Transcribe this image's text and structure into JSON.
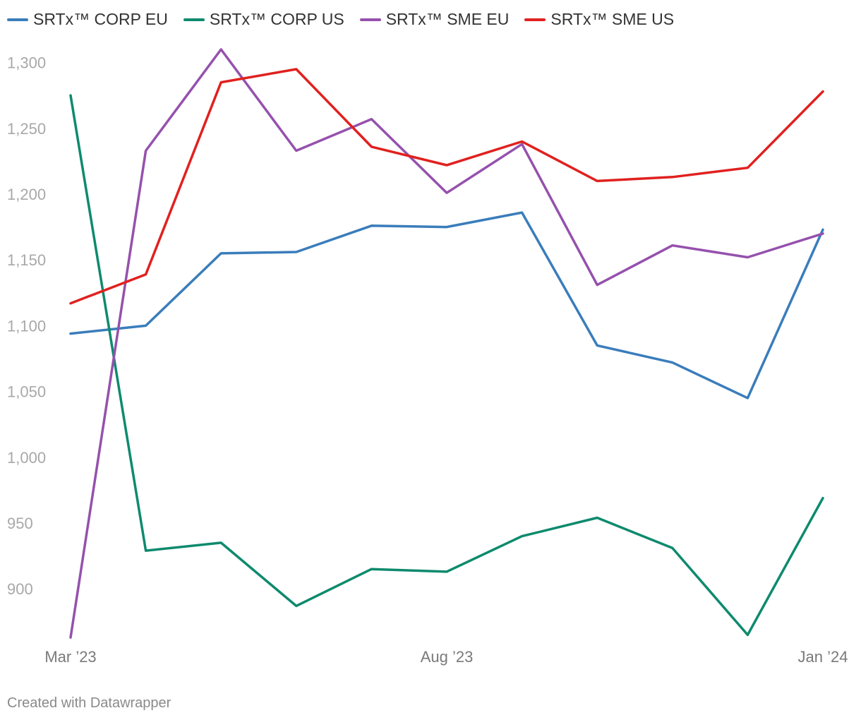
{
  "chart_data": {
    "type": "line",
    "title": "",
    "xlabel": "",
    "ylabel": "",
    "x": [
      "Mar ’23",
      "Apr ’23",
      "May ’23",
      "Jun ’23",
      "Jul ’23",
      "Aug ’23",
      "Sep ’23",
      "Oct ’23",
      "Nov ’23",
      "Dec ’23",
      "Jan ’24"
    ],
    "x_tick_labels": [
      "Mar ’23",
      "Aug ’23",
      "Jan ’24"
    ],
    "y_tick_labels": [
      "1,300",
      "1,250",
      "1,200",
      "1,150",
      "1,100",
      "1,050",
      "1,000",
      "950",
      "900"
    ],
    "y_ticks": [
      1300,
      1250,
      1200,
      1150,
      1100,
      1050,
      1000,
      950,
      900
    ],
    "ylim": [
      862,
      1310
    ],
    "grid": false,
    "legend_position": "top-left",
    "series": [
      {
        "name": "SRTx™ CORP EU",
        "color": "#3a7dbb",
        "values": [
          1094,
          1100,
          1155,
          1156,
          1176,
          1175,
          1186,
          1085,
          1072,
          1045,
          1173
        ]
      },
      {
        "name": "SRTx™ CORP US",
        "color": "#0e8a6e",
        "values": [
          1275,
          929,
          935,
          887,
          915,
          913,
          940,
          954,
          931,
          865,
          969
        ]
      },
      {
        "name": "SRTx™ SME EU",
        "color": "#9551ad",
        "values": [
          863,
          1233,
          1310,
          1233,
          1257,
          1201,
          1238,
          1131,
          1161,
          1152,
          1170
        ]
      },
      {
        "name": "SRTx™ SME US",
        "color": "#e0211f",
        "values": [
          1117,
          1139,
          1285,
          1295,
          1236,
          1222,
          1240,
          1210,
          1213,
          1220,
          1278
        ]
      }
    ]
  },
  "footer": {
    "credit": "Created with Datawrapper"
  }
}
